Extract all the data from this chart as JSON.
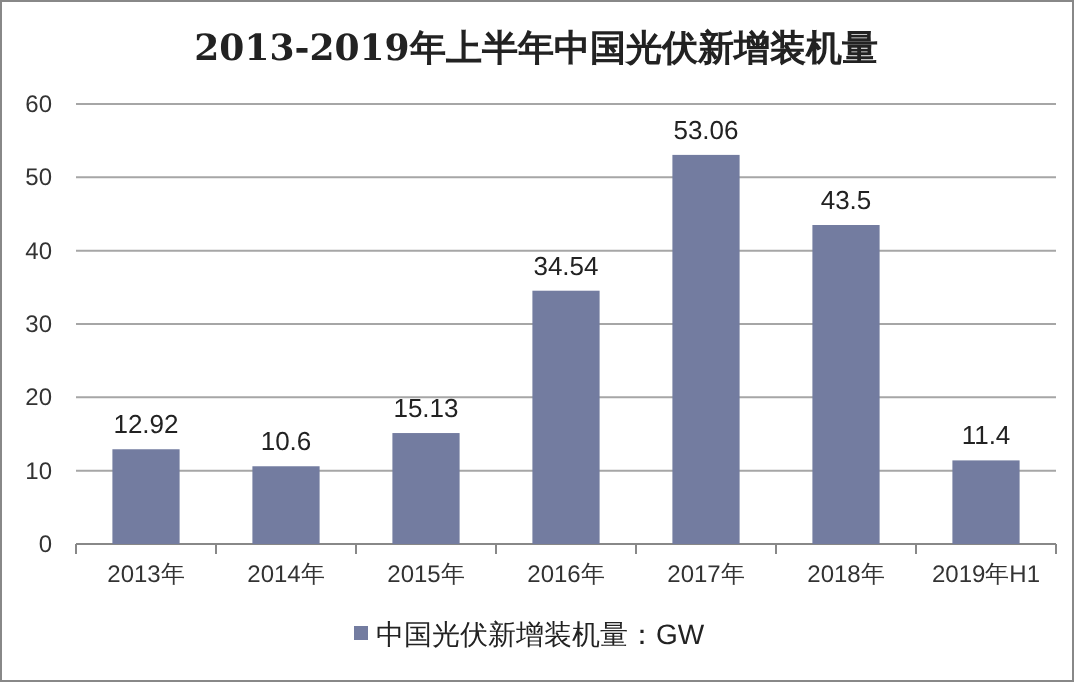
{
  "chart_data": {
    "type": "bar",
    "title": "2013-2019年上半年中国光伏新增装机量",
    "categories": [
      "2013年",
      "2014年",
      "2015年",
      "2016年",
      "2017年",
      "2018年",
      "2019年H1"
    ],
    "series": [
      {
        "name": "中国光伏新增装机量：GW",
        "color": "#737ca0",
        "values": [
          12.92,
          10.6,
          15.13,
          34.54,
          53.06,
          43.5,
          11.4
        ]
      }
    ],
    "ylim": [
      0,
      60
    ],
    "yticks": [
      0,
      10,
      20,
      30,
      40,
      50,
      60
    ],
    "grid": "y",
    "data_labels": true,
    "legend": "bottom"
  }
}
